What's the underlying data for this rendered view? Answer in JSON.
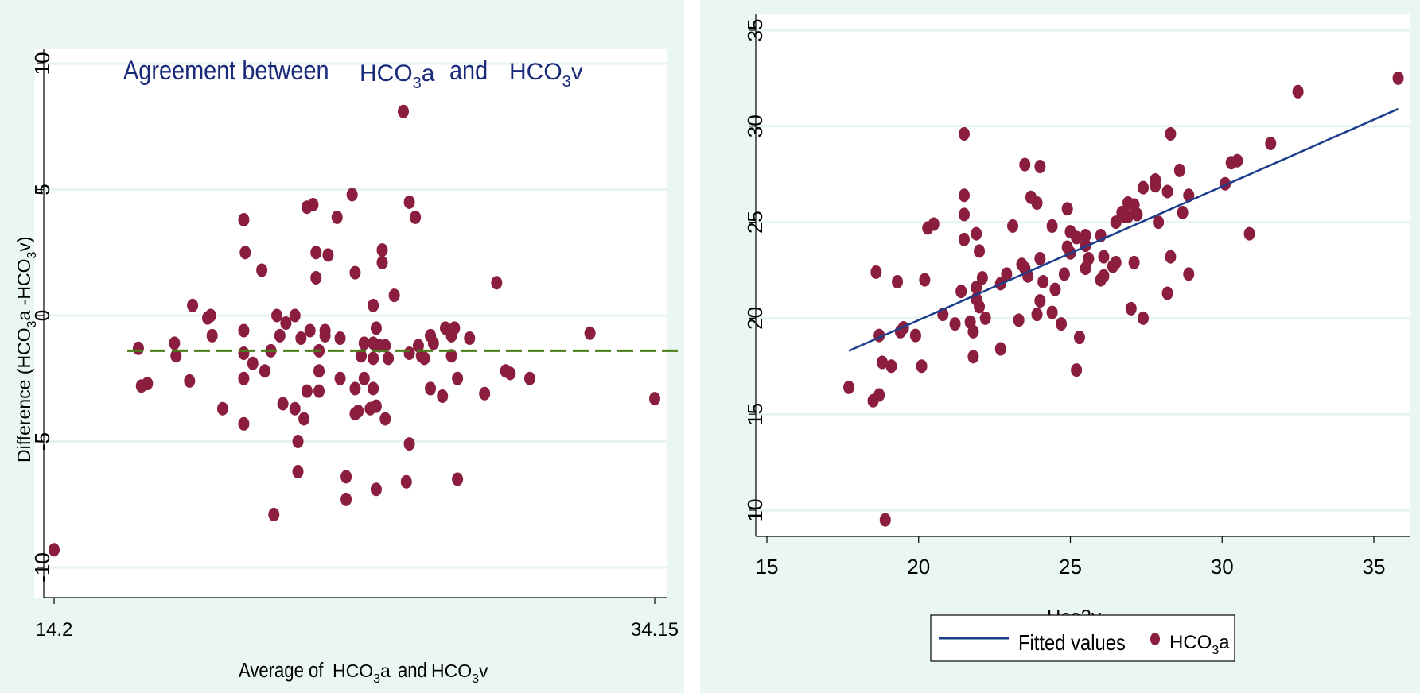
{
  "colors": {
    "outer_background": "#eaf6f3",
    "plot_background": "#ffffff",
    "grid": "#e7f3f0",
    "axis": "#000000",
    "marker": "#8b1e3f",
    "mean_line": "#4a7d1a",
    "fit_line": "#1a3e8c",
    "title": "#1a2a7a"
  },
  "chart_data": [
    {
      "type": "scatter",
      "panel": "left",
      "title_prefix": "Agreement between",
      "title_var1": "HCO3a",
      "title_var2": "HCO3v",
      "title_var1_parts": {
        "base": "HCO",
        "sub": "3",
        "suffix": "a"
      },
      "title_var2_parts": {
        "base": "HCO",
        "sub": "3",
        "suffix": "v"
      },
      "xlabel": "Average of HCO3a and HCO3v",
      "xlabel_parts": {
        "prefix": "Average of",
        "var1": {
          "base": "HCO",
          "sub": "3",
          "suffix": "a"
        },
        "mid": "and",
        "var2": {
          "base": "HCO",
          "sub": "3",
          "suffix": "v"
        }
      },
      "ylabel": "Difference (HCO3a - HCO3v)",
      "ylabel_parts": {
        "prefix": "Difference (",
        "var1": {
          "base": "HCO",
          "sub": "3",
          "suffix": "a"
        },
        "mid": " -",
        "var2": {
          "base": "HCO",
          "sub": "3",
          "suffix": "v"
        },
        "suffix": ")"
      },
      "xlim": [
        14.2,
        34.15
      ],
      "ylim": [
        -10,
        10
      ],
      "xticks": [
        14.2,
        34.15
      ],
      "xtick_labels": [
        "14.2",
        "34.15"
      ],
      "yticks": [
        -10,
        -5,
        0,
        5,
        10
      ],
      "ytick_labels": [
        "-10",
        "-5",
        "0",
        "5",
        "10"
      ],
      "grid": true,
      "mean_difference": -1.4,
      "points": [
        {
          "x": 14.2,
          "y": -9.3
        },
        {
          "x": 17.0,
          "y": -1.3
        },
        {
          "x": 17.1,
          "y": -2.8
        },
        {
          "x": 17.3,
          "y": -2.7
        },
        {
          "x": 18.2,
          "y": -1.1
        },
        {
          "x": 18.25,
          "y": -1.6
        },
        {
          "x": 18.7,
          "y": -2.6
        },
        {
          "x": 18.8,
          "y": 0.4
        },
        {
          "x": 19.3,
          "y": -0.1
        },
        {
          "x": 19.4,
          "y": 0.0
        },
        {
          "x": 19.45,
          "y": -0.8
        },
        {
          "x": 19.8,
          "y": -3.7
        },
        {
          "x": 20.5,
          "y": 3.8
        },
        {
          "x": 20.55,
          "y": 2.5
        },
        {
          "x": 20.5,
          "y": -0.6
        },
        {
          "x": 20.5,
          "y": -1.5
        },
        {
          "x": 20.5,
          "y": -2.5
        },
        {
          "x": 20.5,
          "y": -4.3
        },
        {
          "x": 20.8,
          "y": -1.9
        },
        {
          "x": 21.1,
          "y": 1.8
        },
        {
          "x": 21.2,
          "y": -2.2
        },
        {
          "x": 21.4,
          "y": -1.4
        },
        {
          "x": 21.5,
          "y": -7.9
        },
        {
          "x": 21.6,
          "y": 0.0
        },
        {
          "x": 21.7,
          "y": -0.8
        },
        {
          "x": 21.8,
          "y": -3.5
        },
        {
          "x": 21.9,
          "y": -0.3
        },
        {
          "x": 22.2,
          "y": 0.0
        },
        {
          "x": 22.2,
          "y": -3.7
        },
        {
          "x": 22.3,
          "y": -5.0
        },
        {
          "x": 22.3,
          "y": -6.2
        },
        {
          "x": 22.4,
          "y": -0.9
        },
        {
          "x": 22.5,
          "y": -4.1
        },
        {
          "x": 22.6,
          "y": 4.3
        },
        {
          "x": 22.6,
          "y": -3.0
        },
        {
          "x": 22.7,
          "y": -0.6
        },
        {
          "x": 22.8,
          "y": 4.4
        },
        {
          "x": 22.9,
          "y": 2.5
        },
        {
          "x": 22.9,
          "y": 1.5
        },
        {
          "x": 23.0,
          "y": -1.4
        },
        {
          "x": 23.0,
          "y": -2.2
        },
        {
          "x": 23.0,
          "y": -3.0
        },
        {
          "x": 23.2,
          "y": -0.6
        },
        {
          "x": 23.2,
          "y": -0.8
        },
        {
          "x": 23.3,
          "y": 2.4
        },
        {
          "x": 23.6,
          "y": 3.9
        },
        {
          "x": 23.7,
          "y": -0.9
        },
        {
          "x": 23.7,
          "y": -2.5
        },
        {
          "x": 23.9,
          "y": -6.4
        },
        {
          "x": 23.9,
          "y": -7.3
        },
        {
          "x": 24.1,
          "y": 4.8
        },
        {
          "x": 24.2,
          "y": 1.7
        },
        {
          "x": 24.2,
          "y": -2.9
        },
        {
          "x": 24.2,
          "y": -3.9
        },
        {
          "x": 24.3,
          "y": -3.8
        },
        {
          "x": 24.4,
          "y": -1.6
        },
        {
          "x": 24.5,
          "y": -1.1
        },
        {
          "x": 24.5,
          "y": -2.5
        },
        {
          "x": 24.7,
          "y": -3.7
        },
        {
          "x": 24.8,
          "y": 0.4
        },
        {
          "x": 24.8,
          "y": -1.1
        },
        {
          "x": 24.8,
          "y": -1.7
        },
        {
          "x": 24.8,
          "y": -2.9
        },
        {
          "x": 24.9,
          "y": -0.5
        },
        {
          "x": 24.9,
          "y": -3.6
        },
        {
          "x": 24.9,
          "y": -6.9
        },
        {
          "x": 25.0,
          "y": -1.2
        },
        {
          "x": 25.1,
          "y": 2.6
        },
        {
          "x": 25.1,
          "y": 2.1
        },
        {
          "x": 25.2,
          "y": -1.2
        },
        {
          "x": 25.2,
          "y": -4.1
        },
        {
          "x": 25.3,
          "y": -1.7
        },
        {
          "x": 25.5,
          "y": 0.8
        },
        {
          "x": 25.8,
          "y": 8.1
        },
        {
          "x": 25.9,
          "y": -6.6
        },
        {
          "x": 26.0,
          "y": 4.5
        },
        {
          "x": 26.0,
          "y": -1.5
        },
        {
          "x": 26.0,
          "y": -5.1
        },
        {
          "x": 26.2,
          "y": 3.9
        },
        {
          "x": 26.3,
          "y": -1.2
        },
        {
          "x": 26.4,
          "y": -1.6
        },
        {
          "x": 26.5,
          "y": -1.7
        },
        {
          "x": 26.7,
          "y": -2.9
        },
        {
          "x": 26.7,
          "y": -0.8
        },
        {
          "x": 26.8,
          "y": -1.1
        },
        {
          "x": 27.1,
          "y": -3.2
        },
        {
          "x": 27.2,
          "y": -0.5
        },
        {
          "x": 27.4,
          "y": -1.6
        },
        {
          "x": 27.4,
          "y": -0.8
        },
        {
          "x": 27.5,
          "y": -0.5
        },
        {
          "x": 27.6,
          "y": -2.5
        },
        {
          "x": 27.6,
          "y": -6.5
        },
        {
          "x": 28.0,
          "y": -0.9
        },
        {
          "x": 28.5,
          "y": -3.1
        },
        {
          "x": 28.9,
          "y": 1.3
        },
        {
          "x": 29.2,
          "y": -2.2
        },
        {
          "x": 29.35,
          "y": -2.3
        },
        {
          "x": 30.0,
          "y": -2.5
        },
        {
          "x": 32.0,
          "y": -0.7
        },
        {
          "x": 34.15,
          "y": -3.3
        }
      ]
    },
    {
      "type": "scatter",
      "panel": "right",
      "xlabel": "Hco3v",
      "xlim": [
        14.6,
        36.3
      ],
      "ylim": [
        8.8,
        36.2
      ],
      "xticks": [
        15,
        20,
        25,
        30,
        35
      ],
      "xtick_labels": [
        "15",
        "20",
        "25",
        "30",
        "35"
      ],
      "yticks": [
        10,
        15,
        20,
        25,
        30,
        35
      ],
      "ytick_labels": [
        "10",
        "15",
        "20",
        "25",
        "30",
        "35"
      ],
      "grid": true,
      "legend_position": "bottom",
      "legend": [
        {
          "label": "Fitted values",
          "kind": "line"
        },
        {
          "label": "HCO3a",
          "kind": "marker",
          "label_parts": {
            "base": "HCO",
            "sub": "3",
            "suffix": "a"
          }
        }
      ],
      "fitted_line": {
        "x": [
          17.7,
          35.8
        ],
        "y": [
          18.3,
          30.9
        ]
      },
      "points": [
        {
          "x": 17.7,
          "y": 16.4
        },
        {
          "x": 18.5,
          "y": 15.7
        },
        {
          "x": 18.6,
          "y": 22.4
        },
        {
          "x": 18.7,
          "y": 16.0
        },
        {
          "x": 18.7,
          "y": 19.1
        },
        {
          "x": 18.8,
          "y": 17.7
        },
        {
          "x": 18.9,
          "y": 9.5
        },
        {
          "x": 19.1,
          "y": 17.5
        },
        {
          "x": 19.3,
          "y": 21.9
        },
        {
          "x": 19.4,
          "y": 19.3
        },
        {
          "x": 19.5,
          "y": 19.5
        },
        {
          "x": 19.9,
          "y": 19.1
        },
        {
          "x": 20.1,
          "y": 17.5
        },
        {
          "x": 20.2,
          "y": 22.0
        },
        {
          "x": 20.3,
          "y": 24.7
        },
        {
          "x": 20.5,
          "y": 24.9
        },
        {
          "x": 20.8,
          "y": 20.2
        },
        {
          "x": 21.2,
          "y": 19.7
        },
        {
          "x": 21.4,
          "y": 21.4
        },
        {
          "x": 21.5,
          "y": 29.6
        },
        {
          "x": 21.5,
          "y": 26.4
        },
        {
          "x": 21.5,
          "y": 25.4
        },
        {
          "x": 21.5,
          "y": 24.1
        },
        {
          "x": 21.7,
          "y": 19.8
        },
        {
          "x": 21.8,
          "y": 19.3
        },
        {
          "x": 21.8,
          "y": 18.0
        },
        {
          "x": 21.9,
          "y": 24.4
        },
        {
          "x": 21.9,
          "y": 21.6
        },
        {
          "x": 21.9,
          "y": 21.0
        },
        {
          "x": 22.0,
          "y": 23.5
        },
        {
          "x": 22.0,
          "y": 20.6
        },
        {
          "x": 22.1,
          "y": 22.1
        },
        {
          "x": 22.2,
          "y": 20.0
        },
        {
          "x": 22.7,
          "y": 21.8
        },
        {
          "x": 22.7,
          "y": 18.4
        },
        {
          "x": 22.9,
          "y": 22.3
        },
        {
          "x": 23.1,
          "y": 24.8
        },
        {
          "x": 23.3,
          "y": 19.9
        },
        {
          "x": 23.4,
          "y": 22.8
        },
        {
          "x": 23.5,
          "y": 28.0
        },
        {
          "x": 23.5,
          "y": 22.6
        },
        {
          "x": 23.6,
          "y": 22.2
        },
        {
          "x": 23.7,
          "y": 26.3
        },
        {
          "x": 23.9,
          "y": 26.0
        },
        {
          "x": 23.9,
          "y": 20.2
        },
        {
          "x": 24.0,
          "y": 27.9
        },
        {
          "x": 24.0,
          "y": 23.1
        },
        {
          "x": 24.0,
          "y": 20.9
        },
        {
          "x": 24.1,
          "y": 21.9
        },
        {
          "x": 24.4,
          "y": 24.8
        },
        {
          "x": 24.4,
          "y": 20.3
        },
        {
          "x": 24.5,
          "y": 21.5
        },
        {
          "x": 24.7,
          "y": 19.7
        },
        {
          "x": 24.8,
          "y": 22.3
        },
        {
          "x": 24.9,
          "y": 25.7
        },
        {
          "x": 24.9,
          "y": 23.7
        },
        {
          "x": 25.0,
          "y": 24.5
        },
        {
          "x": 25.0,
          "y": 23.4
        },
        {
          "x": 25.2,
          "y": 24.2
        },
        {
          "x": 25.2,
          "y": 17.3
        },
        {
          "x": 25.3,
          "y": 19.0
        },
        {
          "x": 25.5,
          "y": 24.3
        },
        {
          "x": 25.5,
          "y": 23.8
        },
        {
          "x": 25.5,
          "y": 22.6
        },
        {
          "x": 25.6,
          "y": 23.1
        },
        {
          "x": 26.0,
          "y": 24.3
        },
        {
          "x": 26.0,
          "y": 22.0
        },
        {
          "x": 26.1,
          "y": 23.2
        },
        {
          "x": 26.1,
          "y": 22.2
        },
        {
          "x": 26.4,
          "y": 22.7
        },
        {
          "x": 26.5,
          "y": 25.0
        },
        {
          "x": 26.5,
          "y": 22.9
        },
        {
          "x": 26.7,
          "y": 25.5
        },
        {
          "x": 26.8,
          "y": 25.3
        },
        {
          "x": 26.9,
          "y": 26.0
        },
        {
          "x": 26.9,
          "y": 25.3
        },
        {
          "x": 27.0,
          "y": 20.5
        },
        {
          "x": 27.1,
          "y": 25.9
        },
        {
          "x": 27.1,
          "y": 22.9
        },
        {
          "x": 27.2,
          "y": 25.4
        },
        {
          "x": 27.4,
          "y": 26.8
        },
        {
          "x": 27.4,
          "y": 20.0
        },
        {
          "x": 27.8,
          "y": 27.2
        },
        {
          "x": 27.8,
          "y": 26.9
        },
        {
          "x": 27.9,
          "y": 25.0
        },
        {
          "x": 28.2,
          "y": 26.6
        },
        {
          "x": 28.2,
          "y": 21.3
        },
        {
          "x": 28.3,
          "y": 29.6
        },
        {
          "x": 28.3,
          "y": 23.2
        },
        {
          "x": 28.6,
          "y": 27.7
        },
        {
          "x": 28.7,
          "y": 25.5
        },
        {
          "x": 28.9,
          "y": 26.4
        },
        {
          "x": 28.9,
          "y": 22.3
        },
        {
          "x": 30.1,
          "y": 27.0
        },
        {
          "x": 30.3,
          "y": 28.1
        },
        {
          "x": 30.5,
          "y": 28.2
        },
        {
          "x": 30.9,
          "y": 24.4
        },
        {
          "x": 31.6,
          "y": 29.1
        },
        {
          "x": 32.5,
          "y": 31.8
        },
        {
          "x": 35.8,
          "y": 32.5
        }
      ]
    }
  ]
}
